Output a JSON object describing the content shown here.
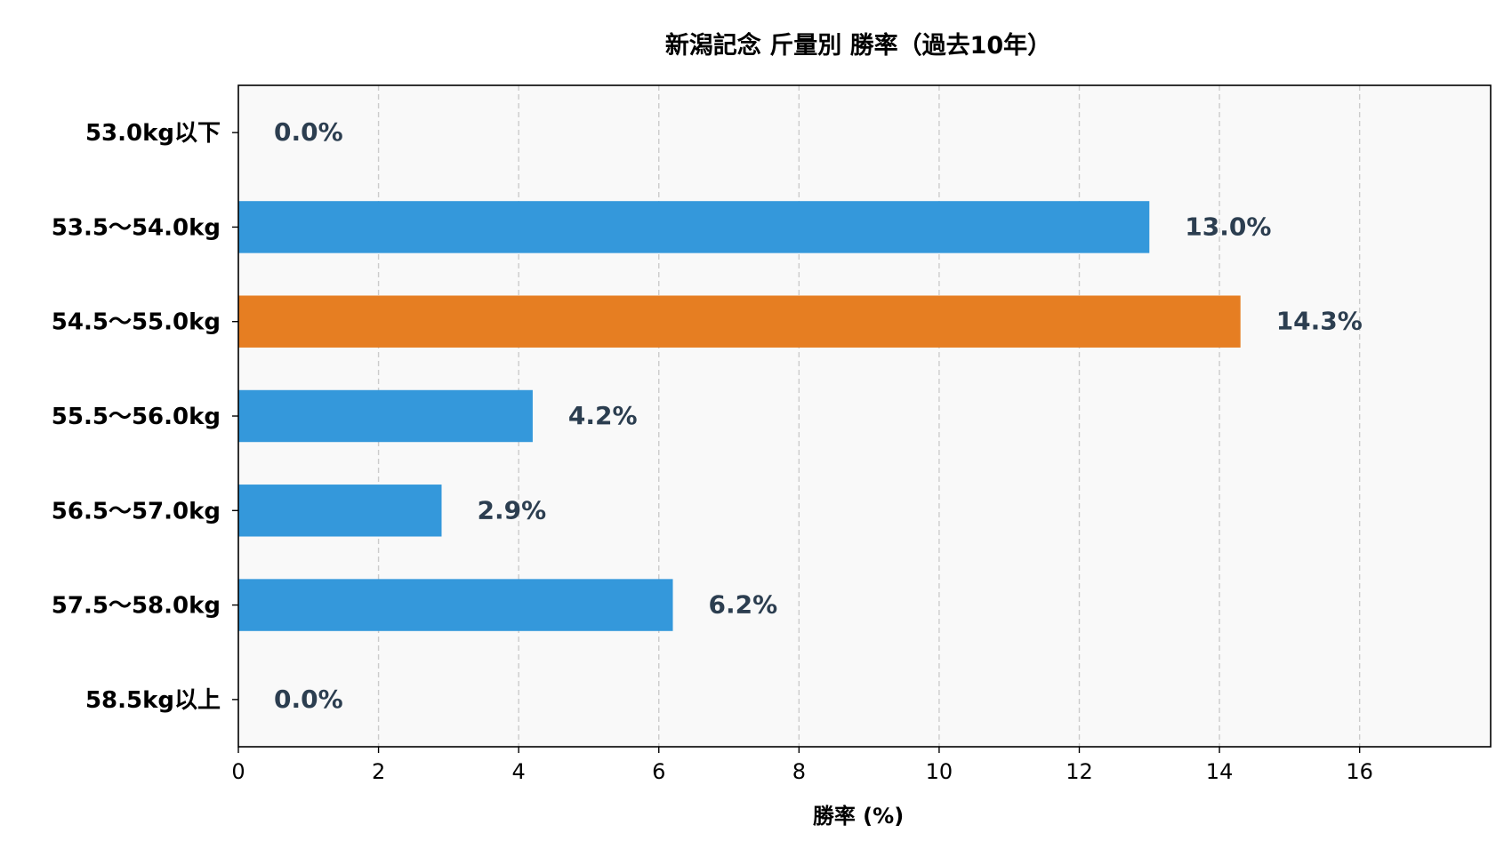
{
  "chart_data": {
    "type": "bar",
    "orientation": "horizontal",
    "title": "新潟記念 斤量別 勝率（過去10年）",
    "xlabel": "勝率 (%)",
    "ylabel": "",
    "categories": [
      "53.0kg以下",
      "53.5〜54.0kg",
      "54.5〜55.0kg",
      "55.5〜56.0kg",
      "56.5〜57.0kg",
      "57.5〜58.0kg",
      "58.5kg以上"
    ],
    "values": [
      0.0,
      13.0,
      14.3,
      4.2,
      2.9,
      6.2,
      0.0
    ],
    "value_labels": [
      "0.0%",
      "13.0%",
      "14.3%",
      "4.2%",
      "2.9%",
      "6.2%",
      "0.0%"
    ],
    "highlight_index": 2,
    "xlim": [
      0,
      17.87
    ],
    "xticks": [
      0,
      2,
      4,
      6,
      8,
      10,
      12,
      14,
      16
    ],
    "xtick_labels": [
      "0",
      "2",
      "4",
      "6",
      "8",
      "10",
      "12",
      "14",
      "16"
    ],
    "grid": "vertical dashed",
    "colors": {
      "bar": "#3498db",
      "highlight": "#e67e22",
      "value_label": "#2c3e50",
      "plot_bg": "#f9f9f9",
      "grid": "#cccccc"
    }
  }
}
